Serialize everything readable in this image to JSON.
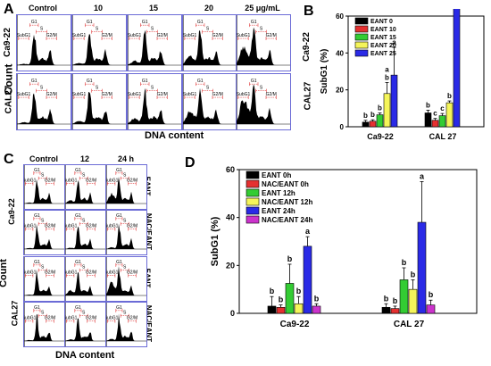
{
  "panels": {
    "A": "A",
    "B": "B",
    "C": "C",
    "D": "D"
  },
  "panel_a": {
    "col_headers": [
      "Control",
      "10",
      "15",
      "20",
      "25 μg/mL"
    ],
    "row_labels": [
      "Ca9-22",
      "CAL27"
    ],
    "ylabel": "Count",
    "xlabel": "DNA content",
    "gate_labels": [
      "SubG1",
      "G1",
      "S",
      "G2/M"
    ]
  },
  "panel_c": {
    "col_headers": [
      "Control",
      "12",
      "24 h"
    ],
    "row_labels": [
      "EANT",
      "NAC/EANT",
      "EANT",
      "NAC/EANT"
    ],
    "cell_labels": [
      "Ca9-22",
      "CAL27"
    ],
    "ylabel": "Count",
    "xlabel": "DNA content",
    "gate_labels": [
      "SubG1",
      "G1",
      "S",
      "G2/M"
    ]
  },
  "chart_data": [
    {
      "type": "bar",
      "panel": "B",
      "ylabel": "SubG1 (%)",
      "ylim": [
        0,
        60
      ],
      "yticks": [
        0,
        20,
        40,
        60
      ],
      "categories": [
        "Ca9-22",
        "CAL 27"
      ],
      "legend_position": "top-left",
      "series": [
        {
          "name": "EANT 0",
          "color": "#000000",
          "values": [
            2.5,
            7.5
          ],
          "errors": [
            1,
            1.5
          ],
          "letters": [
            "b",
            "b"
          ]
        },
        {
          "name": "EANT 10",
          "color": "#e53030",
          "values": [
            3,
            3.5
          ],
          "errors": [
            0.8,
            1
          ],
          "letters": [
            "b",
            "c"
          ]
        },
        {
          "name": "EANT 15",
          "color": "#33cc33",
          "values": [
            6.5,
            6
          ],
          "errors": [
            1,
            1.2
          ],
          "letters": [
            "b",
            "c"
          ]
        },
        {
          "name": "EANT 20",
          "color": "#f5f55a",
          "values": [
            18,
            13
          ],
          "errors": [
            6,
            1
          ],
          "letters": [
            "a b",
            "b"
          ]
        },
        {
          "name": "EANT 25",
          "color": "#2a2ae6",
          "values": [
            28,
            65
          ],
          "errors": [
            15,
            3
          ],
          "letters": [
            "a",
            "a"
          ]
        }
      ]
    },
    {
      "type": "bar",
      "panel": "D",
      "ylabel": "SubG1 (%)",
      "ylim": [
        0,
        60
      ],
      "yticks": [
        0,
        20,
        40,
        60
      ],
      "categories": [
        "Ca9-22",
        "CAL 27"
      ],
      "legend_position": "top-left",
      "series": [
        {
          "name": "EANT 0h",
          "color": "#000000",
          "values": [
            3,
            2.5
          ],
          "errors": [
            4,
            1.5
          ],
          "letters": [
            "b",
            "b"
          ]
        },
        {
          "name": "NAC/EANT 0h",
          "color": "#e53030",
          "values": [
            2.5,
            2
          ],
          "errors": [
            1,
            1
          ],
          "letters": [
            "b",
            "b"
          ]
        },
        {
          "name": "EANT 12h",
          "color": "#33cc33",
          "values": [
            12.5,
            14
          ],
          "errors": [
            8,
            5
          ],
          "letters": [
            "b",
            "b"
          ]
        },
        {
          "name": "NAC/EANT 12h",
          "color": "#f5f55a",
          "values": [
            4,
            10
          ],
          "errors": [
            3,
            4
          ],
          "letters": [
            "b",
            "b"
          ]
        },
        {
          "name": "EANT 24h",
          "color": "#2a2ae6",
          "values": [
            28,
            38
          ],
          "errors": [
            4,
            17
          ],
          "letters": [
            "a",
            "a"
          ]
        },
        {
          "name": "NAC/EANT 24h",
          "color": "#cc33cc",
          "values": [
            3,
            3.5
          ],
          "errors": [
            1,
            2
          ],
          "letters": [
            "b",
            "b"
          ]
        }
      ]
    }
  ]
}
